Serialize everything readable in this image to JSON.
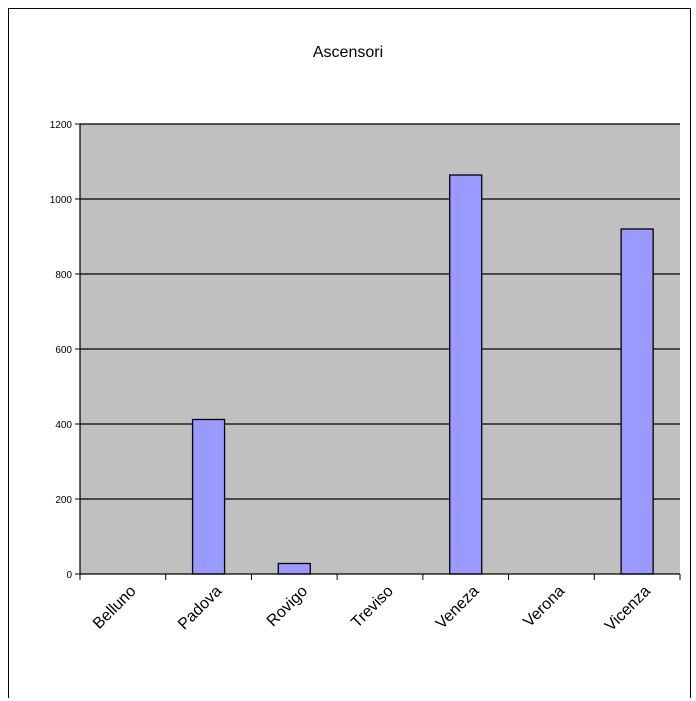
{
  "chart_data": {
    "type": "bar",
    "title": "Ascensori",
    "categories": [
      "Belluno",
      "Padova",
      "Rovigo",
      "Treviso",
      "Veneza",
      "Verona",
      "Vicenza"
    ],
    "values": [
      0,
      412,
      28,
      0,
      1064,
      0,
      920
    ],
    "ylim": [
      0,
      1200
    ],
    "yticks": [
      0,
      200,
      400,
      600,
      800,
      1000,
      1200
    ],
    "grid": true,
    "colors": {
      "plot_background": "#c0c0c0",
      "bar_fill": "#9999ff",
      "bar_stroke": "#000000",
      "grid": "#000000"
    }
  }
}
